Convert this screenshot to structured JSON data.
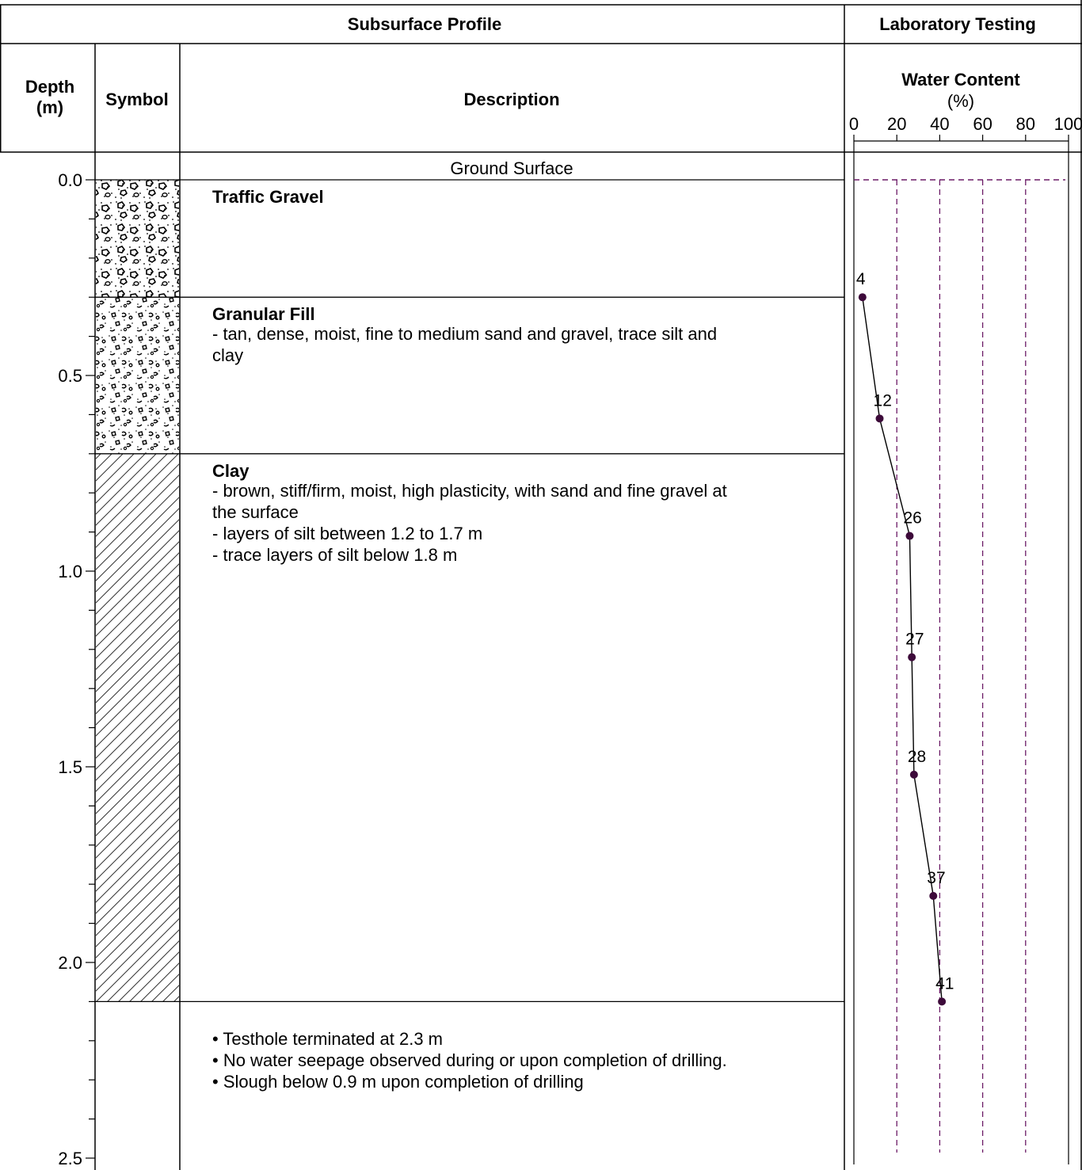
{
  "header": {
    "section_left": "Subsurface Profile",
    "section_right": "Laboratory Testing",
    "col_depth_line1": "Depth",
    "col_depth_line2": "(m)",
    "col_symbol": "Symbol",
    "col_description": "Description",
    "wc_title": "Water Content",
    "wc_unit": "(%)"
  },
  "ground_surface": "Ground Surface",
  "depth_ticks": [
    "0.0",
    "0.5",
    "1.0",
    "1.5",
    "2.0",
    "2.5"
  ],
  "layers": [
    {
      "title": "Traffic Gravel",
      "lines": [],
      "top_m": 0.0,
      "bottom_m": 0.3,
      "pattern": "gravel"
    },
    {
      "title": "Granular Fill",
      "lines": [
        "- tan, dense, moist, fine to medium sand and gravel, trace silt and",
        "clay"
      ],
      "top_m": 0.3,
      "bottom_m": 0.7,
      "pattern": "granular"
    },
    {
      "title": "Clay",
      "lines": [
        "- brown, stiff/firm, moist, high plasticity, with sand and fine gravel at",
        "the surface",
        "- layers of silt between 1.2 to 1.7 m",
        "- trace layers of silt below 1.8 m"
      ],
      "top_m": 0.7,
      "bottom_m": 2.1,
      "pattern": "clay-hatch"
    }
  ],
  "notes": [
    "• Testhole terminated at 2.3 m",
    "• No water seepage observed during or upon completion of drilling.",
    "• Slough below 0.9 m upon completion of drilling"
  ],
  "chart_data": {
    "type": "line",
    "title": "Water Content",
    "xlabel": "(%)",
    "ylabel": "Depth (m)",
    "x_ticks": [
      "0",
      "20",
      "40",
      "60",
      "80",
      "100"
    ],
    "xlim": [
      0,
      100
    ],
    "ylim": [
      0,
      2.5
    ],
    "grid": true,
    "series": [
      {
        "points": [
          {
            "depth": 0.3,
            "value": 4
          },
          {
            "depth": 0.61,
            "value": 12
          },
          {
            "depth": 0.91,
            "value": 26
          },
          {
            "depth": 1.22,
            "value": 27
          },
          {
            "depth": 1.52,
            "value": 28
          },
          {
            "depth": 1.83,
            "value": 37
          },
          {
            "depth": 2.1,
            "value": 41
          }
        ]
      }
    ]
  },
  "colors": {
    "marker": "#3d0a3a",
    "grid": "#6b1a66",
    "line": "#000000"
  }
}
